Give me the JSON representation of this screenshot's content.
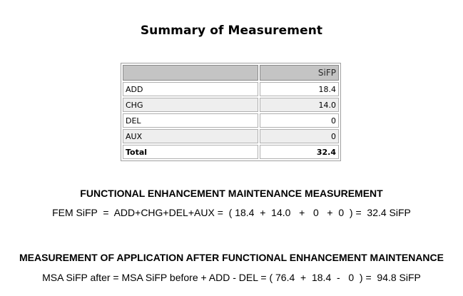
{
  "title": "Summary of Measurement",
  "table": {
    "header_value": "SiFP",
    "rows": [
      {
        "label": "ADD",
        "value": "18.4"
      },
      {
        "label": "CHG",
        "value": "14.0"
      },
      {
        "label": "DEL",
        "value": "0"
      },
      {
        "label": "AUX",
        "value": "0"
      }
    ],
    "total": {
      "label": "Total",
      "value": "32.4"
    }
  },
  "fem": {
    "heading": "FUNCTIONAL ENHANCEMENT MAINTENANCE MEASUREMENT",
    "formula": "FEM SiFP  =  ADD+CHG+DEL+AUX =  ( 18.4  +  14.0   +   0   +  0  ) =  32.4 SiFP"
  },
  "msa": {
    "heading": "MEASUREMENT OF APPLICATION AFTER FUNCTIONAL ENHANCEMENT MAINTENANCE",
    "formula": "MSA SiFP after = MSA SiFP before + ADD - DEL = ( 76.4  +  18.4  -   0  ) =  94.8 SiFP"
  }
}
